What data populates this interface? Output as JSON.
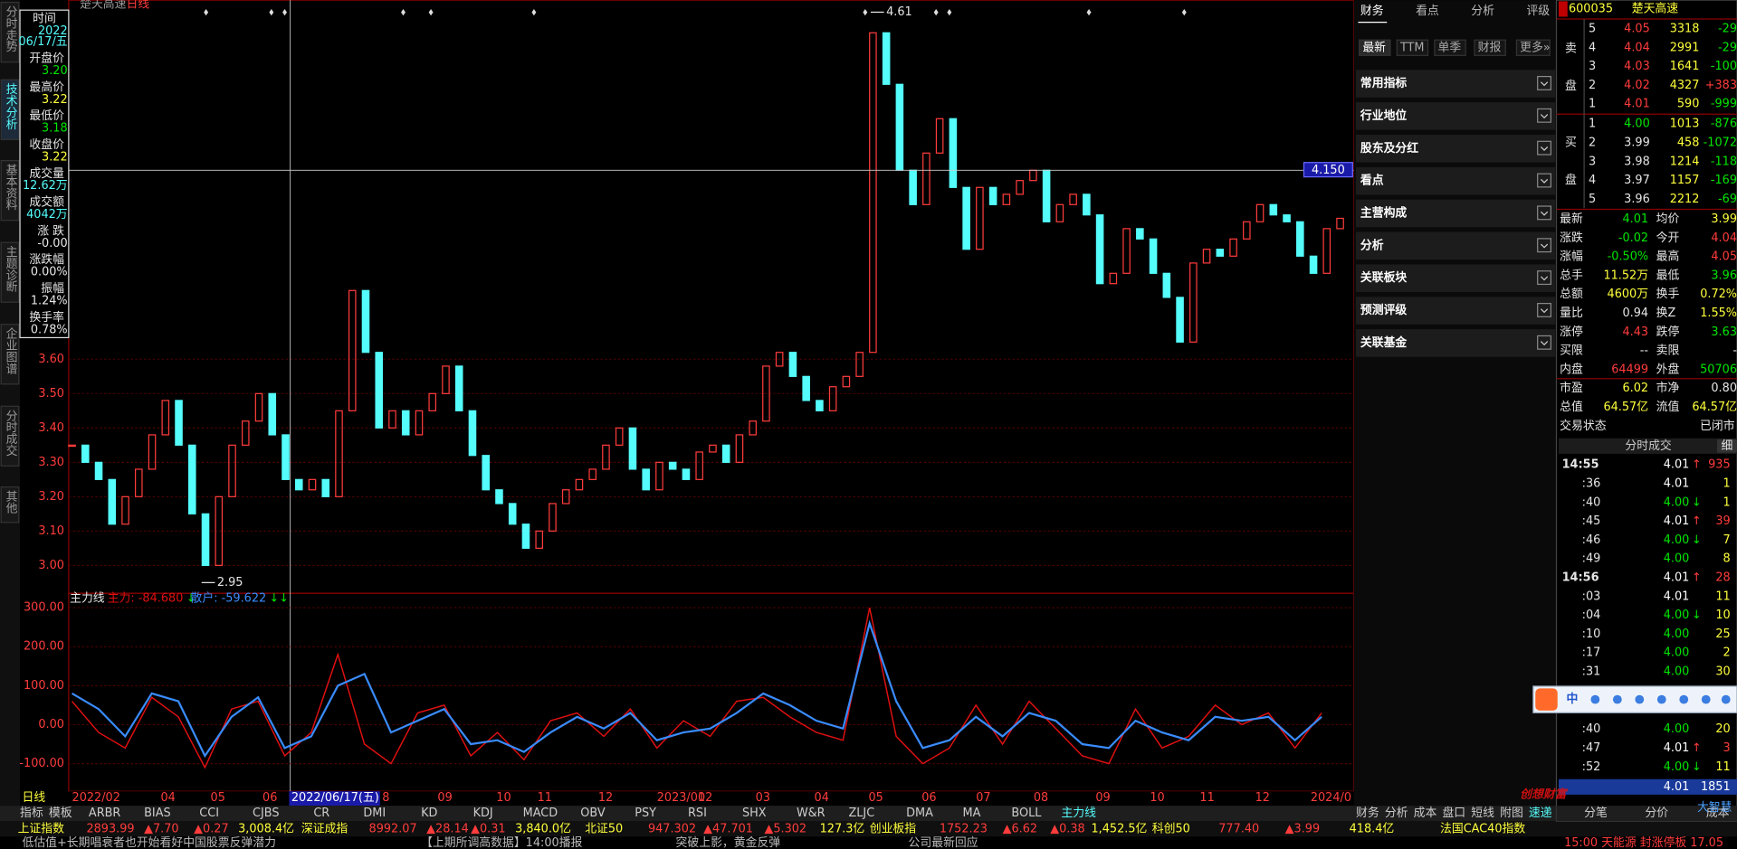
{
  "title_bar": {
    "stock": "楚天高速",
    "period": "日线"
  },
  "left_tabs": [
    "分时走势",
    "技术分析",
    "基本资料",
    "主题诊断",
    "企业图谱",
    "分时成交",
    "其他"
  ],
  "info_panel": {
    "time_label": "时间",
    "year": "2022",
    "date": "06/17/五",
    "rows": [
      {
        "label": "开盘价",
        "value": "3.20"
      },
      {
        "label": "最高价",
        "value": "3.22"
      },
      {
        "label": "最低价",
        "value": "3.18"
      },
      {
        "label": "收盘价",
        "value": "3.22"
      },
      {
        "label": "成交量",
        "value": "12.62万"
      },
      {
        "label": "成交额",
        "value": "4042万"
      },
      {
        "label": "涨 跌",
        "value": "-0.00"
      },
      {
        "label": "涨跌幅",
        "value": "0.00%"
      },
      {
        "label": "振幅",
        "value": "1.24%"
      },
      {
        "label": "换手率",
        "value": "0.78%"
      }
    ]
  },
  "price_chart": {
    "type": "candlestick",
    "ylim": [
      2.919,
      4.645
    ],
    "yticks": [
      {
        "value": 3.0,
        "label": "3.00"
      },
      {
        "value": 3.1,
        "label": "3.10"
      },
      {
        "value": 3.2,
        "label": "3.20"
      },
      {
        "value": 3.3,
        "label": "3.30"
      },
      {
        "value": 3.4,
        "label": "3.40"
      },
      {
        "value": 3.5,
        "label": "3.50"
      },
      {
        "value": 3.6,
        "label": "3.60"
      }
    ],
    "close": [
      3.35,
      3.3,
      3.25,
      3.12,
      3.2,
      3.28,
      3.38,
      3.48,
      3.35,
      3.15,
      3.0,
      3.2,
      3.35,
      3.42,
      3.5,
      3.38,
      3.25,
      3.22,
      3.25,
      3.2,
      3.45,
      3.8,
      3.62,
      3.4,
      3.45,
      3.38,
      3.45,
      3.5,
      3.58,
      3.45,
      3.32,
      3.22,
      3.18,
      3.12,
      3.05,
      3.1,
      3.18,
      3.22,
      3.25,
      3.28,
      3.35,
      3.4,
      3.28,
      3.22,
      3.3,
      3.28,
      3.25,
      3.33,
      3.35,
      3.3,
      3.38,
      3.42,
      3.58,
      3.62,
      3.55,
      3.48,
      3.45,
      3.52,
      3.55,
      3.62,
      4.55,
      4.4,
      4.15,
      4.05,
      4.2,
      4.3,
      4.1,
      3.92,
      4.1,
      4.05,
      4.08,
      4.12,
      4.15,
      4.0,
      4.05,
      4.08,
      4.02,
      3.82,
      3.85,
      3.98,
      3.95,
      3.85,
      3.78,
      3.65,
      3.88,
      3.92,
      3.9,
      3.95,
      4.0,
      4.05,
      4.02,
      4.0,
      3.9,
      3.85,
      3.98,
      4.01
    ],
    "high_mark": {
      "value": 4.61,
      "label": "4.61"
    },
    "low_mark": {
      "value": 2.95,
      "label": "2.95"
    },
    "crosshair": {
      "value": 4.15,
      "label": "4.150"
    }
  },
  "indicator": {
    "name": "主力线",
    "ylim": [
      -171,
      337
    ],
    "yticks": [
      {
        "value": -100,
        "label": "-100.00"
      },
      {
        "value": 0,
        "label": "0.00"
      },
      {
        "value": 100,
        "label": "100.00"
      },
      {
        "value": 200,
        "label": "200.00"
      },
      {
        "value": 300,
        "label": "300.00"
      }
    ],
    "series": [
      {
        "name": "主力: -84.680",
        "arrow": "↓",
        "color": "#e01010",
        "values": [
          60,
          -20,
          -60,
          70,
          20,
          -110,
          40,
          60,
          -80,
          -20,
          180,
          -50,
          -100,
          30,
          50,
          -80,
          -20,
          -90,
          10,
          30,
          -30,
          40,
          -60,
          10,
          -30,
          60,
          70,
          20,
          -20,
          -40,
          300,
          -30,
          -100,
          -60,
          50,
          -50,
          60,
          -10,
          -80,
          -100,
          40,
          -60,
          -30,
          50,
          0,
          30,
          -60,
          30
        ]
      },
      {
        "name": "散户: -59.622",
        "arrow": "↓↓",
        "color": "#3a8cff",
        "values": [
          80,
          40,
          -30,
          80,
          60,
          -80,
          20,
          70,
          -60,
          -30,
          100,
          130,
          -20,
          10,
          40,
          -50,
          -40,
          -70,
          -20,
          20,
          -10,
          30,
          -40,
          -20,
          -10,
          30,
          80,
          50,
          10,
          -10,
          260,
          60,
          -60,
          -40,
          20,
          -30,
          30,
          10,
          -50,
          -60,
          10,
          -20,
          -40,
          20,
          10,
          20,
          -40,
          20
        ]
      }
    ]
  },
  "date_axis": {
    "period": "日线",
    "labels": [
      "2022/02",
      "04",
      "05",
      "06",
      "2022/06/17(五)",
      "8",
      "09",
      "10",
      "11",
      "12",
      "2023/01",
      "02",
      "03",
      "04",
      "05",
      "06",
      "07",
      "08",
      "09",
      "10",
      "11",
      "12",
      "2024/0"
    ]
  },
  "indicator_tabs": [
    "指标",
    "模板",
    "ARBR",
    "BIAS",
    "CCI",
    "CJBS",
    "CR",
    "DMI",
    "KD",
    "KDJ",
    "MACD",
    "OBV",
    "PSY",
    "RSI",
    "SHX",
    "W&R",
    "ZLJC",
    "DMA",
    "MA",
    "BOLL",
    "主力线"
  ],
  "panel_tabs": [
    "财务",
    "分析",
    "成本",
    "盘口",
    "短线",
    "附图",
    "速递"
  ],
  "index_ticker": [
    "上证指数",
    "2893.99",
    "▲7.70",
    "▲0.27",
    "3,008.4亿",
    "深证成指",
    "8992.07",
    "▲28.14",
    "▲0.31",
    "3,840.0亿",
    "北证50",
    "947.302",
    "▲47.701",
    "▲5.302",
    "127.3亿",
    "创业板指",
    "1752.23",
    "▲6.62",
    "▲0.38",
    "1,452.5亿",
    "科创50",
    "777.40",
    "▲3.99",
    "418.4亿",
    "法国CAC40指数"
  ],
  "news_ticker": [
    "低估值+长期唱衰者也开始看好中国股票反弹潜力",
    "【上期所调高数据】14:00播报",
    "突破上影，黄金反弹",
    "公司最新回应",
    "15:00 天能源 封涨停板 17.05"
  ],
  "f10_panel": {
    "tabs": [
      "财务",
      "看点",
      "分析",
      "评级"
    ],
    "buttons": [
      "最新",
      "TTM",
      "单季",
      "财报",
      "更多»"
    ],
    "sections": [
      "常用指标",
      "行业地位",
      "股东及分红",
      "看点",
      "主营构成",
      "分析",
      "关联板块",
      "预测评级",
      "关联基金"
    ]
  },
  "quote": {
    "code": "600035",
    "name": "楚天高速",
    "sell_label": [
      "卖",
      "盘"
    ],
    "buy_label": [
      "买",
      "盘"
    ],
    "asks": [
      {
        "level": "5",
        "price": "4.05",
        "vol": "3318",
        "chg": "-29"
      },
      {
        "level": "4",
        "price": "4.04",
        "vol": "2991",
        "chg": "-29"
      },
      {
        "level": "3",
        "price": "4.03",
        "vol": "1641",
        "chg": "-100"
      },
      {
        "level": "2",
        "price": "4.02",
        "vol": "4327",
        "chg": "+383"
      },
      {
        "level": "1",
        "price": "4.01",
        "vol": "590",
        "chg": "-999"
      }
    ],
    "bids": [
      {
        "level": "1",
        "price": "4.00",
        "vol": "1013",
        "chg": "-876"
      },
      {
        "level": "2",
        "price": "3.99",
        "vol": "458",
        "chg": "-1072"
      },
      {
        "level": "3",
        "price": "3.98",
        "vol": "1214",
        "chg": "-118"
      },
      {
        "level": "4",
        "price": "3.97",
        "vol": "1157",
        "chg": "-169"
      },
      {
        "level": "5",
        "price": "3.96",
        "vol": "2212",
        "chg": "-69"
      }
    ],
    "stats": [
      [
        "最新",
        "4.01",
        "均价",
        "3.99"
      ],
      [
        "涨跌",
        "-0.02",
        "今开",
        "4.04"
      ],
      [
        "涨幅",
        "-0.50%",
        "最高",
        "4.05"
      ],
      [
        "总手",
        "11.52万",
        "最低",
        "3.96"
      ],
      [
        "总额",
        "4600万",
        "换手",
        "0.72%"
      ],
      [
        "量比",
        "0.94",
        "换Z",
        "1.55%"
      ],
      [
        "涨停",
        "4.43",
        "跌停",
        "3.63"
      ],
      [
        "买限",
        "--",
        "卖限",
        "-"
      ],
      [
        "内盘",
        "64499",
        "外盘",
        "50706"
      ],
      [
        "市盈",
        "6.02",
        "市净",
        "0.80"
      ],
      [
        "总值",
        "64.57亿",
        "流值",
        "64.57亿"
      ],
      [
        "交易状态",
        "已闭市"
      ]
    ],
    "ticks_title": "分时成交",
    "ticks_mode": "细",
    "ticks": [
      {
        "time": "14:55",
        "price": "4.01",
        "dir": "↑",
        "vol": "935"
      },
      {
        "time": ":36",
        "price": "4.01",
        "vol": "1"
      },
      {
        "time": ":40",
        "price": "4.00",
        "dir": "↓",
        "vol": "1"
      },
      {
        "time": ":45",
        "price": "4.01",
        "dir": "↑",
        "vol": "39"
      },
      {
        "time": ":46",
        "price": "4.00",
        "dir": "↓",
        "vol": "7"
      },
      {
        "time": ":49",
        "price": "4.00",
        "vol": "8"
      },
      {
        "time": "14:56",
        "price": "4.01",
        "dir": "↑",
        "vol": "28"
      },
      {
        "time": ":03",
        "price": "4.01",
        "vol": "11"
      },
      {
        "time": ":04",
        "price": "4.00",
        "dir": "↓",
        "vol": "10"
      },
      {
        "time": ":10",
        "price": "4.00",
        "vol": "25"
      },
      {
        "time": ":17",
        "price": "4.00",
        "vol": "2"
      },
      {
        "time": ":31",
        "price": "4.00",
        "vol": "30"
      },
      {
        "time": ":40",
        "price": "4.00",
        "vol": "20"
      },
      {
        "time": ":47",
        "price": "4.01",
        "dir": "↑",
        "vol": "3"
      },
      {
        "time": ":52",
        "price": "4.00",
        "dir": "↓",
        "vol": "11"
      },
      {
        "price": "4.01",
        "vol": "1851"
      }
    ],
    "bottom_tabs": [
      "分笔",
      "分价",
      "成本"
    ]
  },
  "ime_bar": "中",
  "watermark": "创想财富",
  "watermark_brand": "大智慧"
}
